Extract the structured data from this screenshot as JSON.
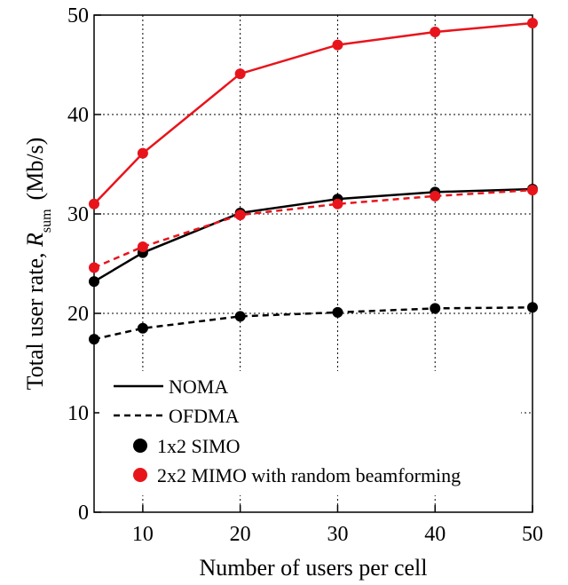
{
  "chart_data": {
    "type": "line",
    "xlabel": "Number of users per cell",
    "ylabel": {
      "prefix": "Total user rate, ",
      "symbol": "R",
      "subscript": "sum",
      "unit": "(Mb/s)"
    },
    "xlim": [
      5,
      50
    ],
    "ylim": [
      0,
      50
    ],
    "xticks": [
      10,
      20,
      30,
      40,
      50
    ],
    "yticks": [
      0,
      10,
      20,
      30,
      40,
      50
    ],
    "grid": true,
    "grid_style": "dotted",
    "legend_position": "lower-left",
    "x": [
      5,
      10,
      20,
      30,
      40,
      50
    ],
    "series": [
      {
        "scheme": "NOMA",
        "config": "2x2 MIMO with random beamforming",
        "color": "#e8141c",
        "dash": "solid",
        "values": [
          31.0,
          36.1,
          44.1,
          47.0,
          48.3,
          49.2
        ]
      },
      {
        "scheme": "NOMA",
        "config": "1x2 SIMO",
        "color": "#000000",
        "dash": "solid",
        "values": [
          23.2,
          26.1,
          30.1,
          31.5,
          32.2,
          32.5
        ]
      },
      {
        "scheme": "OFDMA",
        "config": "2x2 MIMO with random beamforming",
        "color": "#e8141c",
        "dash": "dashed",
        "values": [
          24.6,
          26.7,
          29.9,
          31.0,
          31.8,
          32.4
        ]
      },
      {
        "scheme": "OFDMA",
        "config": "1x2 SIMO",
        "color": "#000000",
        "dash": "dashed",
        "values": [
          17.4,
          18.5,
          19.7,
          20.1,
          20.5,
          20.6
        ]
      }
    ],
    "legend": {
      "line_styles": [
        {
          "label": "NOMA",
          "dash": "solid"
        },
        {
          "label": "OFDMA",
          "dash": "dashed"
        }
      ],
      "markers": [
        {
          "label": "1x2 SIMO",
          "color": "#000000"
        },
        {
          "label": "2x2 MIMO with random beamforming",
          "color": "#e8141c"
        }
      ]
    }
  }
}
